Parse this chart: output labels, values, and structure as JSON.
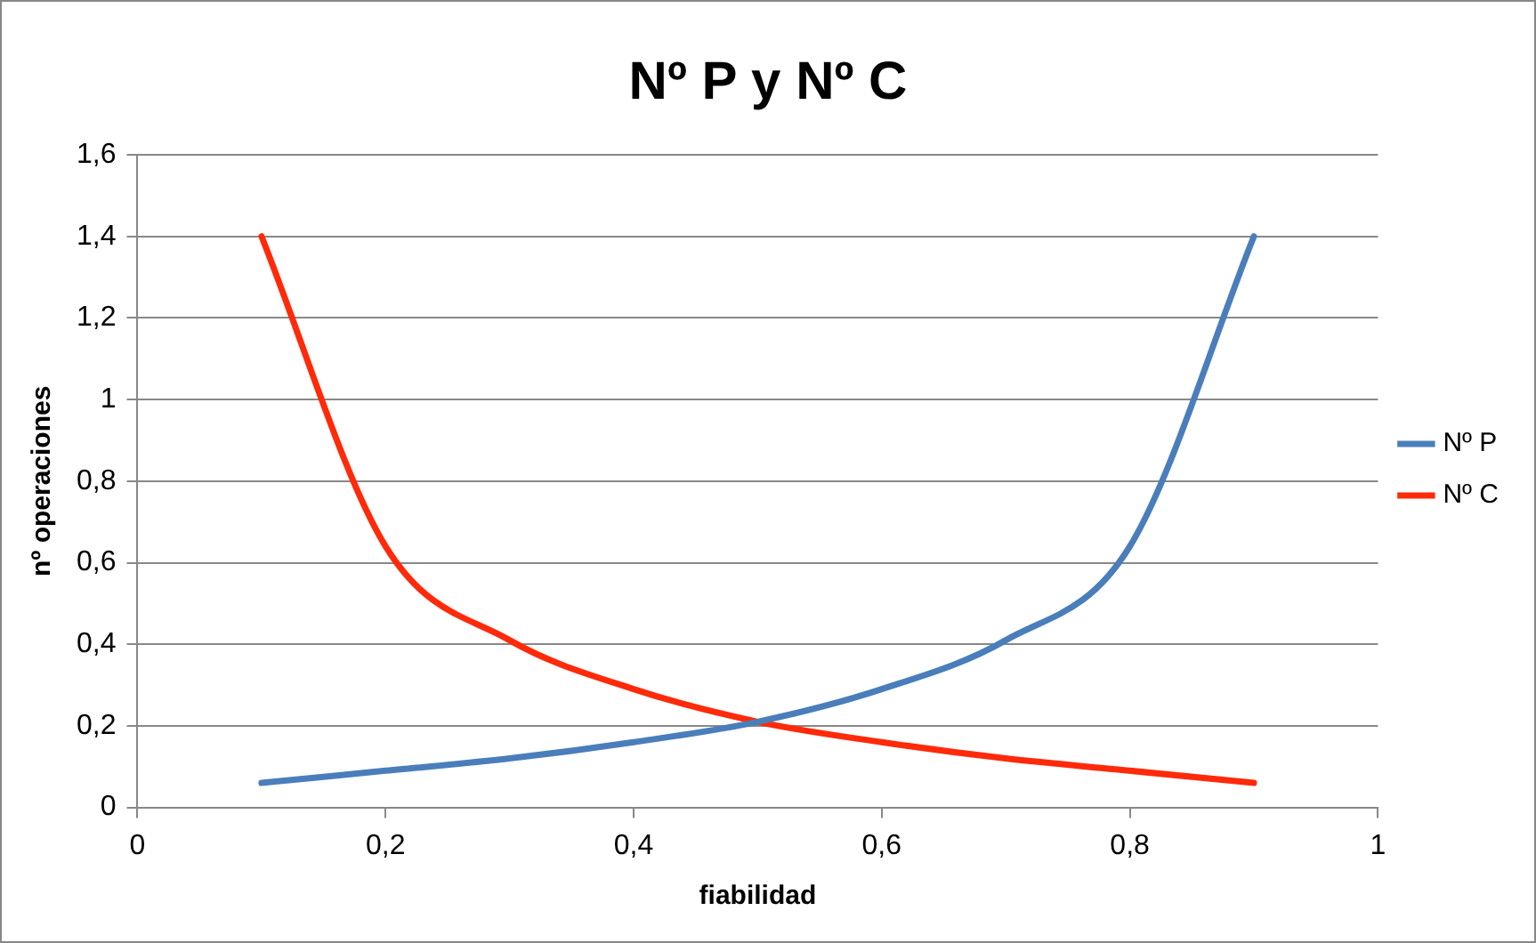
{
  "chart_data": {
    "type": "line",
    "title": "Nº P y Nº C",
    "xlabel": "fiabilidad",
    "ylabel": "nº operaciones",
    "x": [
      0.1,
      0.2,
      0.3,
      0.4,
      0.5,
      0.6,
      0.7,
      0.8,
      0.9
    ],
    "series": [
      {
        "name": "Nº P",
        "color": "#4a7ebb",
        "values": [
          0.06,
          0.09,
          0.12,
          0.16,
          0.21,
          0.29,
          0.41,
          0.64,
          1.4
        ]
      },
      {
        "name": "Nº C",
        "color": "#ff2a0a",
        "values": [
          1.4,
          0.64,
          0.41,
          0.29,
          0.21,
          0.16,
          0.12,
          0.09,
          0.06
        ]
      }
    ],
    "xlim": [
      0,
      1
    ],
    "xticks": [
      0,
      {
        "value": 0.2,
        "label": "0,2"
      },
      {
        "value": 0.4,
        "label": "0,4"
      },
      {
        "value": 0.6,
        "label": "0,6"
      },
      {
        "value": 0.8,
        "label": "0,8"
      },
      1
    ],
    "ylim": [
      0,
      1.6
    ],
    "yticks": [
      0,
      {
        "value": 0.2,
        "label": "0,2"
      },
      {
        "value": 0.4,
        "label": "0,4"
      },
      {
        "value": 0.6,
        "label": "0,6"
      },
      {
        "value": 0.8,
        "label": "0,8"
      },
      1,
      {
        "value": 1.2,
        "label": "1,2"
      },
      {
        "value": 1.4,
        "label": "1,4"
      },
      {
        "value": 1.6,
        "label": "1,6"
      }
    ],
    "grid": "y",
    "legend": "right",
    "marker": "none",
    "line_style": "solid"
  }
}
